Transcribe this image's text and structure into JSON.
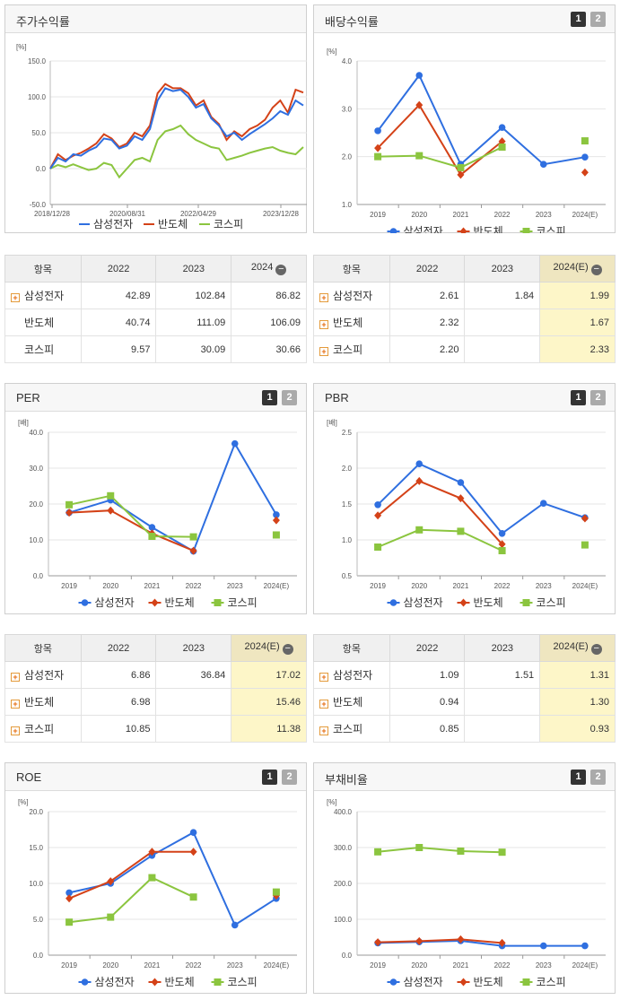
{
  "colors": {
    "samsung": "#2f6fe0",
    "semi": "#d44218",
    "kospi": "#8bc53f"
  },
  "legend": [
    "삼성전자",
    "반도체",
    "코스피"
  ],
  "pager": [
    "1",
    "2"
  ],
  "stock_panel": {
    "title": "주가수익률",
    "unit": "[%]",
    "chart_data": {
      "type": "line",
      "title": "주가수익률",
      "ylim": [
        -50,
        150
      ],
      "yticks": [
        "150.0",
        "100.0",
        "50.0",
        "0.0",
        "-50.0"
      ],
      "xticks": [
        "2018/12/28",
        "2020/08/31",
        "2022/04/29",
        "2023/12/28"
      ],
      "series": [
        {
          "name": "삼성전자",
          "values": [
            0,
            15,
            10,
            20,
            18,
            25,
            30,
            42,
            40,
            28,
            32,
            45,
            40,
            55,
            95,
            112,
            108,
            110,
            100,
            85,
            90,
            70,
            60,
            45,
            50,
            40,
            48,
            55,
            62,
            70,
            80,
            75,
            95,
            88
          ]
        },
        {
          "name": "반도체",
          "values": [
            0,
            20,
            12,
            18,
            22,
            28,
            35,
            48,
            42,
            30,
            35,
            50,
            45,
            60,
            105,
            118,
            112,
            112,
            105,
            88,
            95,
            72,
            62,
            40,
            52,
            45,
            55,
            60,
            68,
            85,
            95,
            78,
            110,
            106
          ]
        },
        {
          "name": "코스피",
          "values": [
            0,
            5,
            2,
            6,
            2,
            -2,
            0,
            8,
            5,
            -12,
            0,
            12,
            15,
            10,
            40,
            52,
            55,
            60,
            48,
            40,
            35,
            30,
            28,
            12,
            15,
            18,
            22,
            25,
            28,
            30,
            25,
            22,
            20,
            30
          ]
        }
      ]
    }
  },
  "div_panel": {
    "title": "배당수익률",
    "unit": "[%]",
    "chart_data": {
      "type": "line",
      "title": "배당수익률",
      "ylim": [
        1.0,
        4.0
      ],
      "yticks": [
        "4.0",
        "3.0",
        "2.0",
        "1.0"
      ],
      "categories": [
        "2019",
        "2020",
        "2021",
        "2022",
        "2023",
        "2024(E)"
      ],
      "series": [
        {
          "name": "삼성전자",
          "values": [
            2.54,
            3.7,
            1.84,
            2.61,
            1.84,
            1.99
          ]
        },
        {
          "name": "반도체",
          "values": [
            2.18,
            3.08,
            1.62,
            2.32,
            null,
            1.67
          ]
        },
        {
          "name": "코스피",
          "values": [
            2.0,
            2.02,
            1.77,
            2.2,
            null,
            2.33
          ]
        }
      ]
    }
  },
  "stock_table": {
    "headers": [
      "항목",
      "2022",
      "2023",
      "2024"
    ],
    "rows": [
      {
        "label": "삼성전자",
        "plus": true,
        "values": [
          "42.89",
          "102.84",
          "86.82"
        ]
      },
      {
        "label": "반도체",
        "plus": false,
        "values": [
          "40.74",
          "111.09",
          "106.09"
        ]
      },
      {
        "label": "코스피",
        "plus": false,
        "values": [
          "9.57",
          "30.09",
          "30.66"
        ]
      }
    ]
  },
  "div_table": {
    "headers": [
      "항목",
      "2022",
      "2023",
      "2024(E)"
    ],
    "rows": [
      {
        "label": "삼성전자",
        "plus": true,
        "values": [
          "2.61",
          "1.84",
          "1.99"
        ]
      },
      {
        "label": "반도체",
        "plus": true,
        "values": [
          "2.32",
          "",
          "1.67"
        ]
      },
      {
        "label": "코스피",
        "plus": true,
        "values": [
          "2.20",
          "",
          "2.33"
        ]
      }
    ]
  },
  "per_panel": {
    "title": "PER",
    "unit": "[배]",
    "chart_data": {
      "type": "line",
      "title": "PER",
      "ylim": [
        0,
        40
      ],
      "yticks": [
        "40.0",
        "30.0",
        "20.0",
        "10.0",
        "0.0"
      ],
      "categories": [
        "2019",
        "2020",
        "2021",
        "2022",
        "2023",
        "2024(E)"
      ],
      "series": [
        {
          "name": "삼성전자",
          "values": [
            17.6,
            21.1,
            13.5,
            6.86,
            36.84,
            17.02
          ]
        },
        {
          "name": "반도체",
          "values": [
            17.6,
            18.2,
            11.8,
            6.98,
            null,
            15.46
          ]
        },
        {
          "name": "코스피",
          "values": [
            19.8,
            22.3,
            11.0,
            10.85,
            null,
            11.38
          ]
        }
      ]
    }
  },
  "pbr_panel": {
    "title": "PBR",
    "unit": "[배]",
    "chart_data": {
      "type": "line",
      "title": "PBR",
      "ylim": [
        0.5,
        2.5
      ],
      "yticks": [
        "2.5",
        "2.0",
        "1.5",
        "1.0",
        "0.5"
      ],
      "categories": [
        "2019",
        "2020",
        "2021",
        "2022",
        "2023",
        "2024(E)"
      ],
      "series": [
        {
          "name": "삼성전자",
          "values": [
            1.49,
            2.06,
            1.8,
            1.09,
            1.51,
            1.31
          ]
        },
        {
          "name": "반도체",
          "values": [
            1.34,
            1.82,
            1.58,
            0.94,
            null,
            1.3
          ]
        },
        {
          "name": "코스피",
          "values": [
            0.9,
            1.14,
            1.12,
            0.85,
            null,
            0.93
          ]
        }
      ]
    }
  },
  "per_table": {
    "headers": [
      "항목",
      "2022",
      "2023",
      "2024(E)"
    ],
    "rows": [
      {
        "label": "삼성전자",
        "plus": true,
        "values": [
          "6.86",
          "36.84",
          "17.02"
        ]
      },
      {
        "label": "반도체",
        "plus": true,
        "values": [
          "6.98",
          "",
          "15.46"
        ]
      },
      {
        "label": "코스피",
        "plus": true,
        "values": [
          "10.85",
          "",
          "11.38"
        ]
      }
    ]
  },
  "pbr_table": {
    "headers": [
      "항목",
      "2022",
      "2023",
      "2024(E)"
    ],
    "rows": [
      {
        "label": "삼성전자",
        "plus": true,
        "values": [
          "1.09",
          "1.51",
          "1.31"
        ]
      },
      {
        "label": "반도체",
        "plus": true,
        "values": [
          "0.94",
          "",
          "1.30"
        ]
      },
      {
        "label": "코스피",
        "plus": true,
        "values": [
          "0.85",
          "",
          "0.93"
        ]
      }
    ]
  },
  "roe_panel": {
    "title": "ROE",
    "unit": "[%]",
    "chart_data": {
      "type": "line",
      "title": "ROE",
      "ylim": [
        0,
        20
      ],
      "yticks": [
        "20.0",
        "15.0",
        "10.0",
        "5.0",
        "0.0"
      ],
      "categories": [
        "2019",
        "2020",
        "2021",
        "2022",
        "2023",
        "2024(E)"
      ],
      "series": [
        {
          "name": "삼성전자",
          "values": [
            8.7,
            10.0,
            13.9,
            17.1,
            4.2,
            7.9
          ]
        },
        {
          "name": "반도체",
          "values": [
            7.9,
            10.3,
            14.4,
            14.4,
            null,
            8.3
          ]
        },
        {
          "name": "코스피",
          "values": [
            4.6,
            5.3,
            10.8,
            8.1,
            null,
            8.8
          ]
        }
      ]
    }
  },
  "debt_panel": {
    "title": "부채비율",
    "unit": "[%]",
    "chart_data": {
      "type": "line",
      "title": "부채비율",
      "ylim": [
        0,
        400
      ],
      "yticks": [
        "400.0",
        "300.0",
        "200.0",
        "100.0",
        "0.0"
      ],
      "categories": [
        "2019",
        "2020",
        "2021",
        "2022",
        "2023",
        "2024(E)"
      ],
      "series": [
        {
          "name": "삼성전자",
          "values": [
            34,
            37,
            40,
            26,
            26,
            26
          ]
        },
        {
          "name": "반도체",
          "values": [
            36,
            39,
            44,
            34,
            null,
            null
          ]
        },
        {
          "name": "코스피",
          "values": [
            288,
            300,
            290,
            287,
            null,
            null
          ]
        }
      ]
    }
  }
}
